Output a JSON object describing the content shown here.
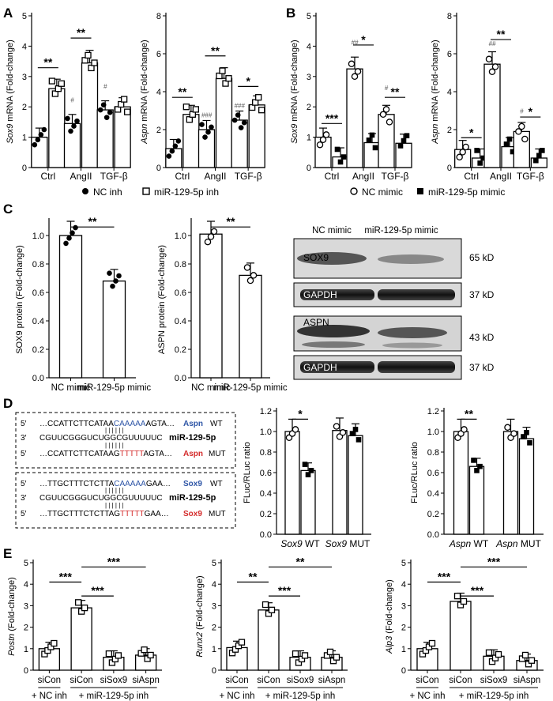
{
  "panels": {
    "A": "A",
    "B": "B",
    "C": "C",
    "D": "D",
    "E": "E"
  },
  "sig": {
    "s1": "*",
    "s2": "**",
    "s3": "***",
    "h1": "#",
    "h2": "##",
    "h3": "###"
  },
  "chart_data": [
    {
      "id": "A1",
      "type": "bar",
      "ylabel": "Sox9 mRNA (Fold-change)",
      "ylabel_italic": "Sox9",
      "categories": [
        "Ctrl",
        "AngII",
        "TGF-β"
      ],
      "ylim": [
        0,
        5
      ],
      "yticks": [
        0,
        1,
        2,
        3,
        4,
        5
      ],
      "series": [
        {
          "name": "NC inh",
          "values": [
            1.0,
            1.45,
            1.9
          ]
        },
        {
          "name": "miR-129-5p inh",
          "values": [
            2.6,
            3.45,
            2.0
          ]
        }
      ],
      "sig": [
        "**",
        "**",
        ""
      ]
    },
    {
      "id": "A2",
      "type": "bar",
      "ylabel": "Aspn mRNA (Fold-change)",
      "ylabel_italic": "Aspn",
      "categories": [
        "Ctrl",
        "AngII",
        "TGF-β"
      ],
      "ylim": [
        0,
        8
      ],
      "yticks": [
        0,
        2,
        4,
        6,
        8
      ],
      "series": [
        {
          "name": "NC inh",
          "values": [
            1.0,
            2.0,
            2.5
          ]
        },
        {
          "name": "miR-129-5p inh",
          "values": [
            2.8,
            4.7,
            3.3
          ]
        }
      ],
      "sig": [
        "**",
        "**",
        "*"
      ]
    },
    {
      "id": "B1",
      "type": "bar",
      "ylabel": "Sox9 mRNA (Fold-change)",
      "ylabel_italic": "Sox9",
      "categories": [
        "Ctrl",
        "AngII",
        "TGF-β"
      ],
      "ylim": [
        0,
        5
      ],
      "yticks": [
        0,
        1,
        2,
        3,
        4,
        5
      ],
      "series": [
        {
          "name": "NC mimic",
          "values": [
            1.0,
            3.25,
            1.75
          ]
        },
        {
          "name": "miR-129-5p mimic",
          "values": [
            0.35,
            0.82,
            0.8
          ]
        }
      ],
      "sig": [
        "***",
        "*",
        "**"
      ]
    },
    {
      "id": "B2",
      "type": "bar",
      "ylabel": "Aspn mRNA (Fold-change)",
      "ylabel_italic": "Aspn",
      "categories": [
        "Ctrl",
        "AngII",
        "TGF-β"
      ],
      "ylim": [
        0,
        8
      ],
      "yticks": [
        0,
        2,
        4,
        6,
        8
      ],
      "series": [
        {
          "name": "NC mimic",
          "values": [
            0.95,
            5.45,
            1.9
          ]
        },
        {
          "name": "miR-129-5p mimic",
          "values": [
            0.5,
            1.1,
            0.5
          ]
        }
      ],
      "sig": [
        "*",
        "**",
        "*"
      ]
    },
    {
      "id": "C1",
      "type": "bar",
      "ylabel": "SOX9 protein (Fold-change)",
      "categories": [
        "NC mimic",
        "miR-129-5p mimic"
      ],
      "ylim": [
        0,
        1.1
      ],
      "yticks": [
        0.0,
        0.2,
        0.4,
        0.6,
        0.8,
        1.0
      ],
      "values": [
        1.0,
        0.68
      ],
      "sig": "**"
    },
    {
      "id": "C2",
      "type": "bar",
      "ylabel": "ASPN protein (Fold-change)",
      "categories": [
        "NC mimic",
        "miR-129-5p mimic"
      ],
      "ylim": [
        0,
        1.1
      ],
      "yticks": [
        0.0,
        0.2,
        0.4,
        0.6,
        0.8,
        1.0
      ],
      "values": [
        1.01,
        0.72
      ],
      "sig": "**"
    },
    {
      "id": "D1",
      "type": "bar",
      "ylabel": "FLuc/RLuc ratio",
      "categories": [
        "Sox9 WT",
        "Sox9 MUT"
      ],
      "ylim": [
        0,
        1.2
      ],
      "yticks": [
        0.0,
        0.2,
        0.4,
        0.6,
        0.8,
        1.0,
        1.2
      ],
      "series": [
        {
          "values": [
            1.0,
            1.01
          ]
        },
        {
          "values": [
            0.62,
            0.96
          ]
        }
      ],
      "sig": "*"
    },
    {
      "id": "D2",
      "type": "bar",
      "ylabel": "FLuc/RLuc ratio",
      "categories": [
        "Aspn WT",
        "Aspn MUT"
      ],
      "ylim": [
        0,
        1.2
      ],
      "yticks": [
        0.0,
        0.2,
        0.4,
        0.6,
        0.8,
        1.0,
        1.2
      ],
      "series": [
        {
          "values": [
            1.0,
            1.0
          ]
        },
        {
          "values": [
            0.66,
            0.93
          ]
        }
      ],
      "sig": "**"
    },
    {
      "id": "E1",
      "type": "bar",
      "ylabel": "Postn (Fold-change)",
      "ylabel_italic": "Postn",
      "categories": [
        "siCon",
        "siCon",
        "siSox9",
        "siAspn"
      ],
      "ylim": [
        0,
        5
      ],
      "yticks": [
        0,
        1,
        2,
        3,
        4,
        5
      ],
      "values": [
        1.0,
        2.9,
        0.6,
        0.7
      ],
      "sig": [
        "***",
        "***",
        "***"
      ]
    },
    {
      "id": "E2",
      "type": "bar",
      "ylabel": "Runx2 (Fold-change)",
      "ylabel_italic": "Runx2",
      "categories": [
        "siCon",
        "siCon",
        "siSox9",
        "siAspn"
      ],
      "ylim": [
        0,
        5
      ],
      "yticks": [
        0,
        1,
        2,
        3,
        4,
        5
      ],
      "values": [
        1.05,
        2.8,
        0.6,
        0.6
      ],
      "sig": [
        "**",
        "***",
        "**"
      ]
    },
    {
      "id": "E3",
      "type": "bar",
      "ylabel": "Alp3 (Fold-change)",
      "ylabel_italic": "Alp3",
      "categories": [
        "siCon",
        "siCon",
        "siSox9",
        "siAspn"
      ],
      "ylim": [
        0,
        5
      ],
      "yticks": [
        0,
        1,
        2,
        3,
        4,
        5
      ],
      "values": [
        1.0,
        3.2,
        0.65,
        0.45
      ],
      "sig": [
        "***",
        "***",
        "***"
      ]
    }
  ],
  "legendA": [
    "NC inh",
    "miR-129-5p inh"
  ],
  "legendB": [
    "NC mimic",
    "miR-129-5p mimic"
  ],
  "groupsE": [
    "+ NC inh",
    "+ miR-129-5p inh"
  ],
  "blot": {
    "col1": "NC mimic",
    "col2": "miR-129-5p mimic",
    "rows": [
      {
        "label": "SOX9",
        "kd": "65 kD"
      },
      {
        "label": "GAPDH",
        "kd": "37 kD"
      },
      {
        "label": "ASPN",
        "kd": "43 kD"
      },
      {
        "label": "GAPDH",
        "kd": "37 kD"
      }
    ]
  },
  "seq": {
    "five": "5′",
    "three": "3′",
    "s1": "…CCATTCTTCATAA",
    "s1b": "CAAAAA",
    "s1c": "AGTA…",
    "g1": "Aspn",
    "t1": "WT",
    "s2": "CGUUCGGGUCUGGCGUUUUUC",
    "g2": "miR-129-5p",
    "s3": "…CCATTCTTCATAAG",
    "s3b": "TTTTT",
    "s3c": "AGTA…",
    "g3": "Aspn",
    "t3": "MUT",
    "s4": "…TTGCTTTCTCTTA",
    "s4b": "CAAAAA",
    "s4c": "GAA…",
    "g4": "Sox9",
    "t4": "WT",
    "s5": "CGUUCGGGUCUGGCGUUUUUC",
    "g5": "miR-129-5p",
    "s6": "…TTGCTTTCTCTTAG",
    "s6b": "TTTTT",
    "s6c": "GAA…",
    "g6": "Sox9",
    "t6": "MUT",
    "bars": "| | | | | |"
  },
  "colors": {
    "blue": "#2e55a6",
    "red": "#d42a2a"
  }
}
